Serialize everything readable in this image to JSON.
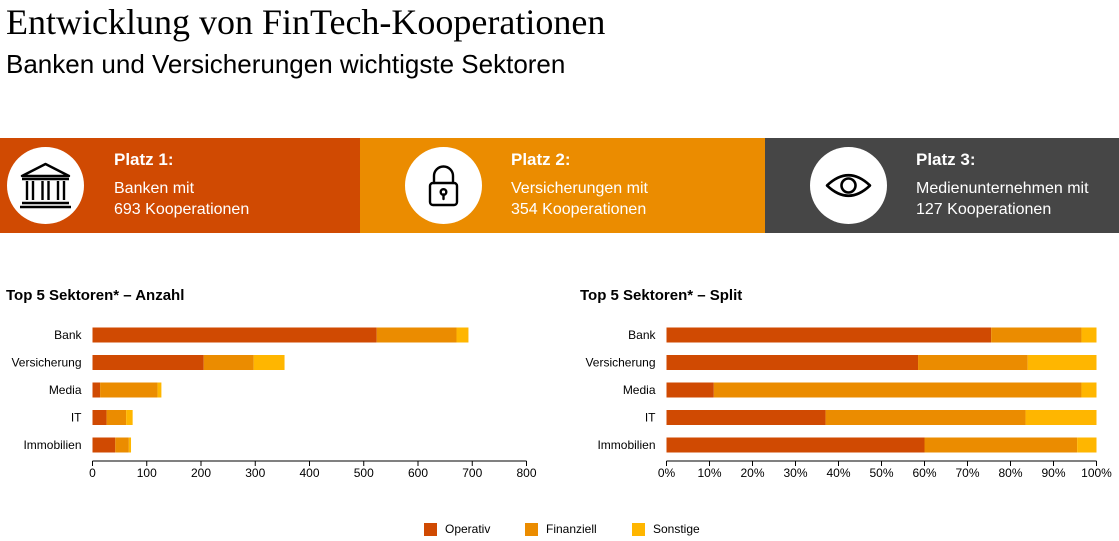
{
  "title": "Entwicklung von FinTech-Kooperationen",
  "subtitle": "Banken und Versicherungen wichtigste Sektoren",
  "banners": [
    {
      "rank": "Platz 1:",
      "line1": "Banken mit",
      "line2": "693 Kooperationen",
      "icon": "bank-building-icon",
      "color": "#D04A02"
    },
    {
      "rank": "Platz 2:",
      "line1": "Versicherungen mit",
      "line2": "354 Kooperationen",
      "icon": "padlock-icon",
      "color": "#EB8C00"
    },
    {
      "rank": "Platz 3:",
      "line1": "Medienunternehmen mit",
      "line2": "127 Kooperationen",
      "icon": "eye-icon",
      "color": "#464646"
    }
  ],
  "colors": {
    "operativ": "#D04A02",
    "finanziell": "#EB8C00",
    "sonstige": "#FFB600",
    "axis": "#000000"
  },
  "legend": [
    {
      "label": "Operativ",
      "color": "#D04A02"
    },
    {
      "label": "Finanziell",
      "color": "#EB8C00"
    },
    {
      "label": "Sonstige",
      "color": "#FFB600"
    }
  ],
  "chart_data": [
    {
      "type": "bar",
      "orientation": "horizontal",
      "stacked": true,
      "title": "Top 5 Sektoren* – Anzahl",
      "categories": [
        "Bank",
        "Versicherung",
        "Media",
        "IT",
        "Immobilien"
      ],
      "series": [
        {
          "name": "Operativ",
          "values": [
            524,
            205,
            14,
            26,
            42
          ]
        },
        {
          "name": "Finanziell",
          "values": [
            147,
            92,
            106,
            36,
            25
          ]
        },
        {
          "name": "Sonstige",
          "values": [
            22,
            57,
            7,
            12,
            4
          ]
        }
      ],
      "xlim": [
        0,
        800
      ],
      "xticks": [
        "0",
        "100",
        "200",
        "300",
        "400",
        "500",
        "600",
        "700",
        "800"
      ],
      "grid": false
    },
    {
      "type": "bar",
      "orientation": "horizontal",
      "stacked": true,
      "percent": true,
      "title": "Top 5 Sektoren* – Split",
      "categories": [
        "Bank",
        "Versicherung",
        "Media",
        "IT",
        "Immobilien"
      ],
      "series": [
        {
          "name": "Operativ",
          "values": [
            75.5,
            58.5,
            11,
            37,
            60
          ]
        },
        {
          "name": "Finanziell",
          "values": [
            21,
            25.5,
            85.5,
            46.5,
            35.5
          ]
        },
        {
          "name": "Sonstige",
          "values": [
            3.5,
            16,
            3.5,
            16.5,
            4.5
          ]
        }
      ],
      "xlim": [
        0,
        100
      ],
      "xticks": [
        "0%",
        "10%",
        "20%",
        "30%",
        "40%",
        "50%",
        "60%",
        "70%",
        "80%",
        "90%",
        "100%"
      ],
      "grid": false
    }
  ]
}
